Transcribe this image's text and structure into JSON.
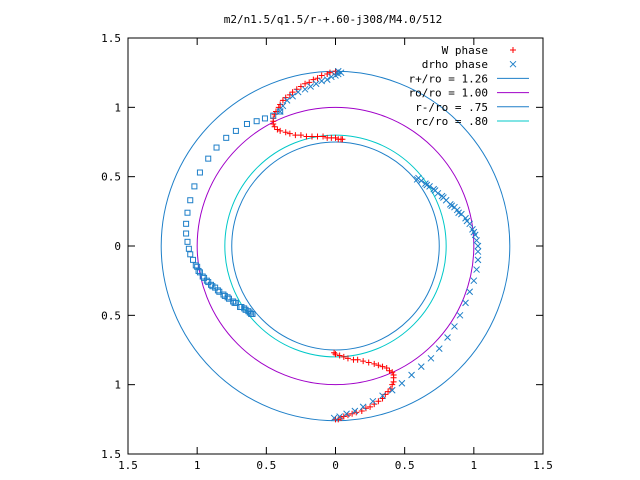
{
  "chart_data": {
    "type": "scatter",
    "title": "m2/n1.5/q1.5/r-+.60-j308/M4.0/512",
    "xlim": [
      -1.5,
      1.5
    ],
    "ylim": [
      -1.5,
      1.5
    ],
    "x_tick_values": [
      -1.5,
      -1,
      -0.5,
      0,
      0.5,
      1,
      1.5
    ],
    "x_tick_labels": [
      "1.5",
      "1",
      "0.5",
      "0",
      "0.5",
      "1",
      "1.5"
    ],
    "y_tick_values": [
      1.5,
      1,
      0.5,
      0,
      -0.5,
      -1,
      -1.5
    ],
    "y_tick_labels": [
      "1.5",
      "1",
      "0.5",
      "0",
      "0.5",
      "1",
      "1.5"
    ],
    "legend_position": "top-right",
    "series": [
      {
        "name": "W phase",
        "kind": "points",
        "marker": "+",
        "color": "#ff0000",
        "points": [
          [
            0.0,
            1.24
          ],
          [
            -0.04,
            1.25
          ],
          [
            -0.1,
            1.23
          ],
          [
            -0.16,
            1.2
          ],
          [
            -0.22,
            1.17
          ],
          [
            -0.28,
            1.13
          ],
          [
            -0.33,
            1.09
          ],
          [
            -0.38,
            1.05
          ],
          [
            -0.41,
            1.0
          ],
          [
            -0.44,
            0.95
          ],
          [
            -0.45,
            0.9
          ],
          [
            -0.44,
            0.86
          ],
          [
            -0.4,
            0.83
          ],
          [
            -0.33,
            0.81
          ],
          [
            -0.25,
            0.8
          ],
          [
            -0.17,
            0.79
          ],
          [
            -0.09,
            0.79
          ],
          [
            -0.03,
            0.78
          ],
          [
            0.02,
            0.77
          ],
          [
            0.05,
            0.77
          ],
          [
            0.0,
            1.26
          ],
          [
            -0.06,
            1.24
          ],
          [
            -0.13,
            1.21
          ],
          [
            -0.19,
            1.18
          ],
          [
            -0.25,
            1.15
          ],
          [
            -0.31,
            1.11
          ],
          [
            -0.36,
            1.07
          ],
          [
            -0.4,
            1.02
          ],
          [
            -0.43,
            0.97
          ],
          [
            -0.45,
            0.92
          ],
          [
            -0.45,
            0.88
          ],
          [
            -0.42,
            0.84
          ],
          [
            -0.36,
            0.82
          ],
          [
            -0.29,
            0.8
          ],
          [
            -0.21,
            0.79
          ],
          [
            -0.13,
            0.79
          ],
          [
            -0.06,
            0.78
          ],
          [
            0.0,
            0.78
          ],
          [
            0.04,
            0.77
          ],
          [
            -0.01,
            -0.77
          ],
          [
            0.03,
            -0.79
          ],
          [
            0.09,
            -0.81
          ],
          [
            0.16,
            -0.82
          ],
          [
            0.24,
            -0.84
          ],
          [
            0.31,
            -0.86
          ],
          [
            0.37,
            -0.88
          ],
          [
            0.41,
            -0.91
          ],
          [
            0.42,
            -0.95
          ],
          [
            0.41,
            -1.0
          ],
          [
            0.38,
            -1.05
          ],
          [
            0.34,
            -1.1
          ],
          [
            0.28,
            -1.14
          ],
          [
            0.22,
            -1.17
          ],
          [
            0.15,
            -1.2
          ],
          [
            0.09,
            -1.22
          ],
          [
            0.04,
            -1.24
          ],
          [
            0.0,
            -1.25
          ],
          [
            0.0,
            -0.78
          ],
          [
            0.06,
            -0.8
          ],
          [
            0.13,
            -0.82
          ],
          [
            0.2,
            -0.83
          ],
          [
            0.28,
            -0.85
          ],
          [
            0.34,
            -0.87
          ],
          [
            0.39,
            -0.9
          ],
          [
            0.42,
            -0.93
          ],
          [
            0.42,
            -0.98
          ],
          [
            0.4,
            -1.03
          ],
          [
            0.36,
            -1.07
          ],
          [
            0.31,
            -1.12
          ],
          [
            0.25,
            -1.16
          ],
          [
            0.19,
            -1.19
          ],
          [
            0.12,
            -1.21
          ],
          [
            0.06,
            -1.23
          ],
          [
            0.02,
            -1.25
          ]
        ]
      },
      {
        "name": "drho phase",
        "kind": "points",
        "marker": "x",
        "color": "#1e7fc8",
        "points": [
          [
            0.02,
            1.26
          ],
          [
            0.04,
            1.25
          ],
          [
            0.02,
            1.24
          ],
          [
            0.0,
            1.23
          ],
          [
            -0.03,
            1.22
          ],
          [
            -0.06,
            1.2
          ],
          [
            -0.1,
            1.19
          ],
          [
            -0.14,
            1.17
          ],
          [
            -0.18,
            1.15
          ],
          [
            -0.22,
            1.13
          ],
          [
            -0.27,
            1.11
          ],
          [
            -0.31,
            1.08
          ],
          [
            -0.35,
            1.05
          ],
          [
            -0.38,
            1.01
          ],
          [
            -0.4,
            0.97
          ],
          [
            0.59,
            0.48
          ],
          [
            0.62,
            0.47
          ],
          [
            0.65,
            0.45
          ],
          [
            0.68,
            0.43
          ],
          [
            0.71,
            0.41
          ],
          [
            0.74,
            0.38
          ],
          [
            0.77,
            0.36
          ],
          [
            0.8,
            0.33
          ],
          [
            0.83,
            0.3
          ],
          [
            0.86,
            0.28
          ],
          [
            0.88,
            0.26
          ],
          [
            0.91,
            0.23
          ],
          [
            0.94,
            0.2
          ],
          [
            0.97,
            0.16
          ],
          [
            0.99,
            0.12
          ],
          [
            1.01,
            0.08
          ],
          [
            1.02,
            0.04
          ],
          [
            1.03,
            0.0
          ],
          [
            1.03,
            -0.04
          ],
          [
            1.03,
            -0.1
          ],
          [
            1.02,
            -0.17
          ],
          [
            1.0,
            -0.25
          ],
          [
            0.97,
            -0.33
          ],
          [
            0.94,
            -0.41
          ],
          [
            0.9,
            -0.5
          ],
          [
            0.86,
            -0.58
          ],
          [
            0.81,
            -0.66
          ],
          [
            0.75,
            -0.74
          ],
          [
            0.69,
            -0.81
          ],
          [
            0.62,
            -0.87
          ],
          [
            0.55,
            -0.93
          ],
          [
            0.48,
            -0.99
          ],
          [
            0.41,
            -1.04
          ],
          [
            0.34,
            -1.08
          ],
          [
            0.27,
            -1.12
          ],
          [
            0.2,
            -1.16
          ],
          [
            0.14,
            -1.19
          ],
          [
            0.08,
            -1.21
          ],
          [
            0.03,
            -1.23
          ],
          [
            -0.01,
            -1.24
          ],
          [
            0.6,
            0.49
          ],
          [
            0.66,
            0.44
          ],
          [
            0.72,
            0.4
          ],
          [
            0.78,
            0.35
          ],
          [
            0.84,
            0.29
          ],
          [
            0.89,
            0.24
          ],
          [
            0.95,
            0.18
          ],
          [
            1.0,
            0.1
          ]
        ]
      },
      {
        "name": "",
        "kind": "points",
        "marker": "square",
        "color": "#1e7fc8",
        "points": [
          [
            -0.4,
            0.97
          ],
          [
            -0.45,
            0.94
          ],
          [
            -0.51,
            0.92
          ],
          [
            -0.57,
            0.9
          ],
          [
            -0.64,
            0.88
          ],
          [
            -0.72,
            0.83
          ],
          [
            -0.79,
            0.78
          ],
          [
            -0.86,
            0.71
          ],
          [
            -0.92,
            0.63
          ],
          [
            -0.98,
            0.53
          ],
          [
            -1.02,
            0.43
          ],
          [
            -1.05,
            0.33
          ],
          [
            -1.07,
            0.24
          ],
          [
            -1.08,
            0.16
          ],
          [
            -1.08,
            0.09
          ],
          [
            -1.07,
            0.03
          ],
          [
            -1.06,
            -0.02
          ],
          [
            -1.05,
            -0.06
          ],
          [
            -1.03,
            -0.1
          ],
          [
            -1.01,
            -0.14
          ],
          [
            -0.99,
            -0.18
          ],
          [
            -0.96,
            -0.22
          ],
          [
            -0.93,
            -0.25
          ],
          [
            -0.89,
            -0.29
          ],
          [
            -0.85,
            -0.32
          ],
          [
            -0.81,
            -0.35
          ],
          [
            -0.77,
            -0.38
          ],
          [
            -0.73,
            -0.41
          ],
          [
            -0.69,
            -0.44
          ],
          [
            -0.65,
            -0.46
          ],
          [
            -0.62,
            -0.48
          ],
          [
            -0.6,
            -0.49
          ],
          [
            -1.0,
            -0.15
          ],
          [
            -0.95,
            -0.23
          ],
          [
            -0.9,
            -0.28
          ],
          [
            -0.84,
            -0.33
          ],
          [
            -0.78,
            -0.37
          ],
          [
            -0.72,
            -0.41
          ],
          [
            -0.66,
            -0.45
          ],
          [
            -0.61,
            -0.49
          ],
          [
            -0.98,
            -0.19
          ],
          [
            -0.92,
            -0.26
          ],
          [
            -0.87,
            -0.3
          ],
          [
            -0.8,
            -0.36
          ],
          [
            -0.74,
            -0.4
          ],
          [
            -0.68,
            -0.44
          ],
          [
            -0.63,
            -0.47
          ]
        ]
      },
      {
        "name": "r+/ro = 1.26",
        "kind": "circle",
        "r": 1.26,
        "color": "#1e7fc8"
      },
      {
        "name": "ro/ro = 1.00",
        "kind": "circle",
        "r": 1.0,
        "color": "#a000c8"
      },
      {
        "name": "r-/ro = .75",
        "kind": "circle",
        "r": 0.75,
        "color": "#1e7fc8"
      },
      {
        "name": "rc/ro = .80",
        "kind": "circle",
        "r": 0.8,
        "color": "#00c8c8"
      }
    ]
  }
}
